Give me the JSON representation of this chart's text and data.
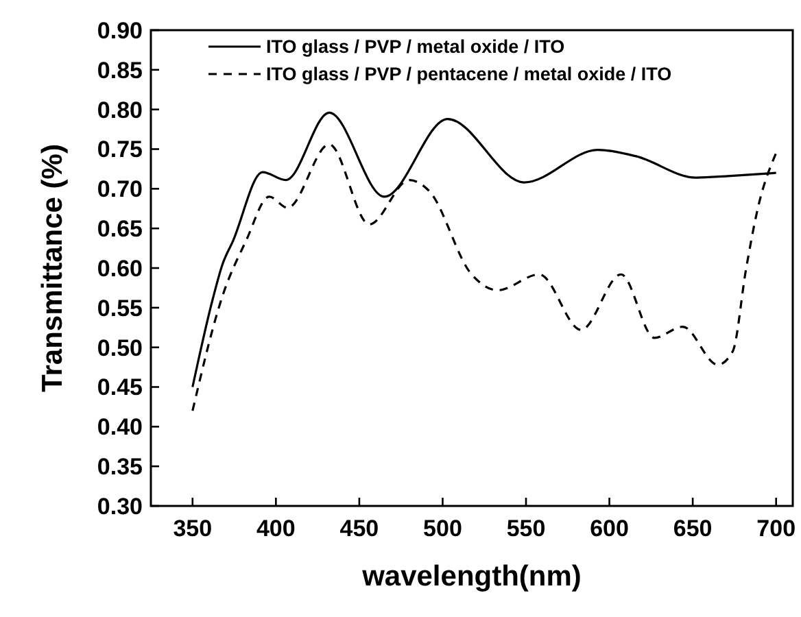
{
  "chart_data": {
    "type": "line",
    "xlabel": "wavelength(nm)",
    "ylabel": "Transmittance (%)",
    "xlim": [
      325,
      710
    ],
    "ylim": [
      0.3,
      0.9
    ],
    "xticks": [
      350,
      400,
      450,
      500,
      550,
      600,
      650,
      700
    ],
    "yticks": [
      {
        "value": 0.3,
        "label": "0.30"
      },
      0.35,
      {
        "value": 0.4,
        "label": "0.40"
      },
      0.45,
      {
        "value": 0.5,
        "label": "0.50"
      },
      0.55,
      {
        "value": 0.6,
        "label": "0.60"
      },
      0.65,
      {
        "value": 0.7,
        "label": "0.70"
      },
      0.75,
      {
        "value": 0.8,
        "label": "0.80"
      },
      0.85,
      {
        "value": 0.9,
        "label": "0.90"
      }
    ],
    "legend": "top",
    "grid": false,
    "marker": "none",
    "series": [
      {
        "name": "ITO glass / PVP / metal oxide / ITO",
        "color": "#000000",
        "line_style": "solid",
        "x": [
          350,
          362,
          368,
          374,
          392,
          406,
          432,
          465,
          503,
          549,
          593,
          616,
          652,
          671,
          700
        ],
        "values": [
          0.45,
          0.56,
          0.605,
          0.633,
          0.721,
          0.711,
          0.796,
          0.69,
          0.788,
          0.708,
          0.749,
          0.741,
          0.714,
          0.716,
          0.72
        ]
      },
      {
        "name": "ITO glass / PVP / pentacene / metal oxide / ITO",
        "color": "#000000",
        "line_style": "dashed",
        "x": [
          350,
          368,
          382,
          396,
          407,
          432,
          456,
          480,
          492,
          517,
          533,
          558,
          583,
          607,
          627,
          644,
          665,
          674,
          682,
          689,
          700
        ],
        "values": [
          0.42,
          0.565,
          0.634,
          0.69,
          0.676,
          0.756,
          0.655,
          0.711,
          0.697,
          0.593,
          0.572,
          0.592,
          0.522,
          0.592,
          0.512,
          0.526,
          0.478,
          0.495,
          0.599,
          0.675,
          0.745
        ]
      }
    ]
  }
}
